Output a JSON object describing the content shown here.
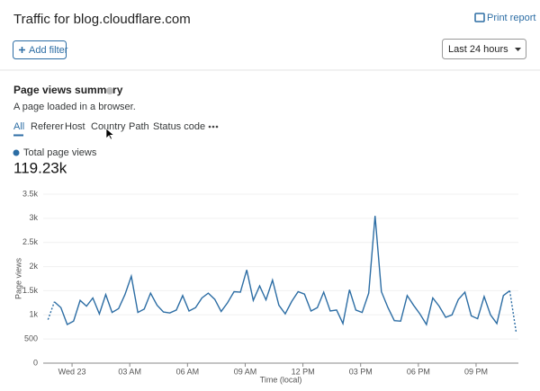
{
  "header": {
    "title": "Traffic for blog.cloudflare.com",
    "print": "Print report"
  },
  "toolbar": {
    "add_filter": "Add filter",
    "time_range": "Last 24 hours"
  },
  "summary": {
    "title": "Page views summary",
    "description": "A page loaded in a browser.",
    "tabs": [
      "All",
      "Referer",
      "Host",
      "Country",
      "Path",
      "Status code"
    ],
    "total": "119.23k"
  },
  "chart_data": {
    "type": "line",
    "xlabel": "Time (local)",
    "ylabel": "Page views",
    "grid": true,
    "dashed_ends": true,
    "x": [
      -1.25,
      -0.92,
      -0.58,
      -0.25,
      0.08,
      0.42,
      0.75,
      1.08,
      1.42,
      1.75,
      2.08,
      2.42,
      2.75,
      3.08,
      3.42,
      3.75,
      4.08,
      4.42,
      4.75,
      5.08,
      5.42,
      5.75,
      6.08,
      6.42,
      6.75,
      7.08,
      7.42,
      7.75,
      8.08,
      8.42,
      8.75,
      9.08,
      9.42,
      9.75,
      10.08,
      10.42,
      10.75,
      11.08,
      11.42,
      11.75,
      12.08,
      12.42,
      12.75,
      13.08,
      13.42,
      13.75,
      14.08,
      14.42,
      14.75,
      15.08,
      15.42,
      15.75,
      16.08,
      16.42,
      16.75,
      17.08,
      17.42,
      17.75,
      18.08,
      18.42,
      18.75,
      19.08,
      19.42,
      19.75,
      20.08,
      20.42,
      20.75,
      21.08,
      21.42,
      21.75,
      22.08,
      22.42,
      22.75,
      23.08
    ],
    "series": [
      {
        "name": "Total page views",
        "color": "#2c6da4",
        "values": [
          900,
          1270,
          1150,
          800,
          870,
          1300,
          1180,
          1350,
          1020,
          1420,
          1050,
          1130,
          1420,
          1800,
          1050,
          1120,
          1450,
          1200,
          1060,
          1040,
          1100,
          1400,
          1080,
          1150,
          1350,
          1450,
          1320,
          1070,
          1250,
          1480,
          1470,
          1930,
          1300,
          1600,
          1310,
          1720,
          1200,
          1020,
          1280,
          1480,
          1430,
          1080,
          1150,
          1470,
          1080,
          1100,
          820,
          1520,
          1100,
          1050,
          1450,
          3050,
          1480,
          1150,
          880,
          870,
          1400,
          1200,
          1020,
          800,
          1350,
          1180,
          950,
          1000,
          1320,
          1470,
          980,
          920,
          1380,
          1000,
          820,
          1400,
          1500,
          650
        ]
      }
    ],
    "xlim": [
      -1.5,
      23.2
    ],
    "xticks": [
      {
        "value": 0,
        "label": "Wed 23"
      },
      {
        "value": 3,
        "label": "03 AM"
      },
      {
        "value": 6,
        "label": "06 AM"
      },
      {
        "value": 9,
        "label": "09 AM"
      },
      {
        "value": 12,
        "label": "12 PM"
      },
      {
        "value": 15,
        "label": "03 PM"
      },
      {
        "value": 18,
        "label": "06 PM"
      },
      {
        "value": 21,
        "label": "09 PM"
      }
    ],
    "ylim": [
      0,
      3500
    ],
    "yticks": [
      0,
      500,
      {
        "value": 1000,
        "label": "1k"
      },
      {
        "value": 1500,
        "label": "1.5k"
      },
      {
        "value": 2000,
        "label": "2k"
      },
      {
        "value": 2500,
        "label": "2.5k"
      },
      {
        "value": 3000,
        "label": "3k"
      },
      {
        "value": 3500,
        "label": "3.5k"
      }
    ]
  }
}
